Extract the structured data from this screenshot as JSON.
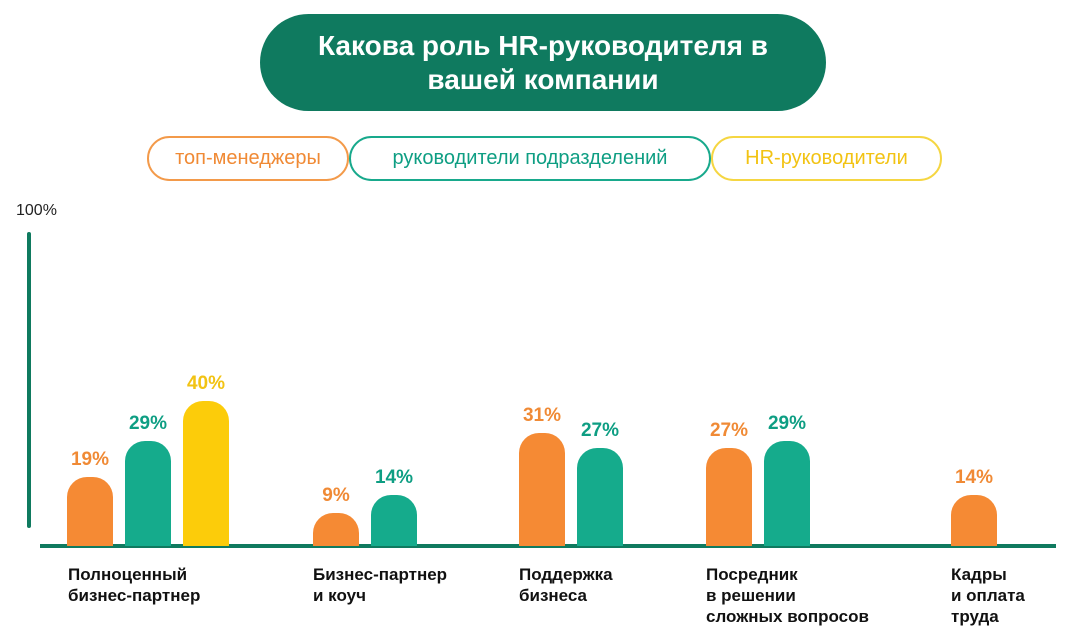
{
  "chart_data": {
    "type": "bar",
    "title": "Какова роль HR-руководителя в вашей компании",
    "y_max_label": "100%",
    "ylim": [
      0,
      100
    ],
    "grid": false,
    "legend_position": "top",
    "unit": "%",
    "categories": [
      "Полноценный бизнес-партнер",
      "Бизнес-партнер и коуч",
      "Поддержка бизнеса",
      "Посредник в решении сложных вопросов",
      "Кадры и оплата труда"
    ],
    "category_label_lines": [
      "Полноценный\nбизнес-партнер",
      "Бизнес-партнер\nи коуч",
      "Поддержка\nбизнеса",
      "Посредник\nв решении\nсложных вопросов",
      "Кадры\nи оплата\nтруда"
    ],
    "series": [
      {
        "name": "топ-менеджеры",
        "color": "#f58a34",
        "label_color": "#f08a35",
        "values": [
          19,
          9,
          31,
          27,
          14
        ]
      },
      {
        "name": "руководители подразделений",
        "color": "#15ab8c",
        "label_color": "#0e9e83",
        "values": [
          29,
          14,
          27,
          29,
          null
        ]
      },
      {
        "name": "HR-руководители",
        "color": "#fccc0a",
        "label_color": "#f2c313",
        "values": [
          40,
          null,
          null,
          null,
          null
        ]
      }
    ]
  }
}
